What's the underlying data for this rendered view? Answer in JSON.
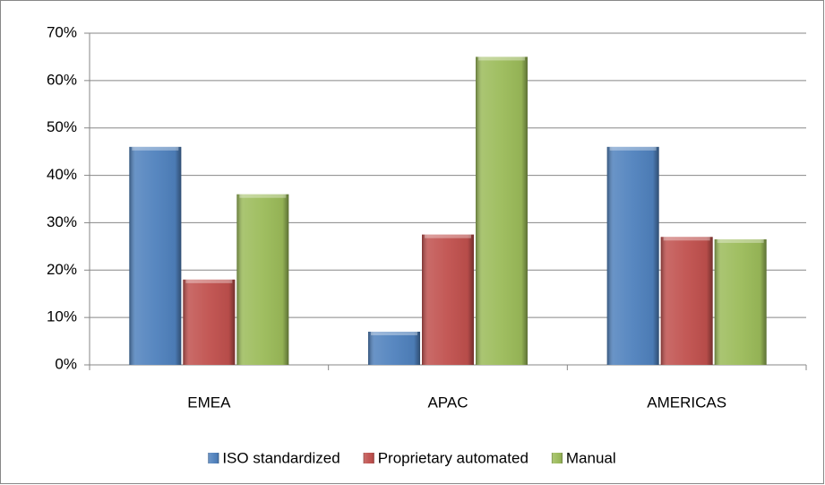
{
  "chart_data": {
    "type": "bar",
    "categories": [
      "EMEA",
      "APAC",
      "AMERICAS"
    ],
    "series": [
      {
        "name": "ISO standardized",
        "color": "#4f81bd",
        "values": [
          46,
          7,
          46
        ]
      },
      {
        "name": "Proprietary automated",
        "color": "#c0504d",
        "values": [
          18,
          27.5,
          27
        ]
      },
      {
        "name": "Manual",
        "color": "#9bbb59",
        "values": [
          36,
          65,
          26.5
        ]
      }
    ],
    "ylim": [
      0,
      70
    ],
    "yticks": [
      {
        "value": 0,
        "label": "0%"
      },
      {
        "value": 10,
        "label": "10%"
      },
      {
        "value": 20,
        "label": "20%"
      },
      {
        "value": 30,
        "label": "30%"
      },
      {
        "value": 40,
        "label": "40%"
      },
      {
        "value": 50,
        "label": "50%"
      },
      {
        "value": 60,
        "label": "60%"
      },
      {
        "value": 70,
        "label": "70%"
      }
    ],
    "grid": true,
    "legend": "bottom"
  }
}
